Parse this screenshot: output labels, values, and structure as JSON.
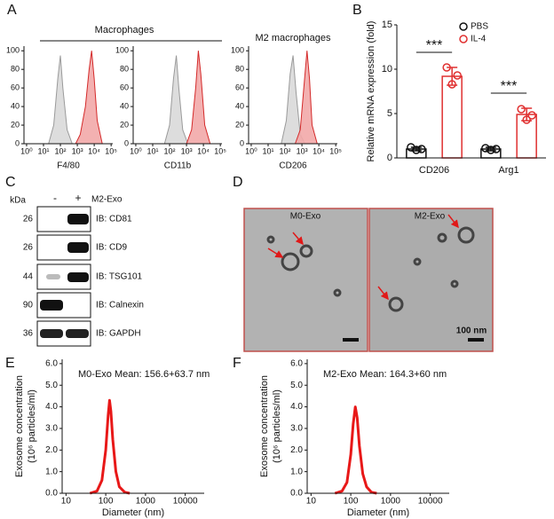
{
  "panel_labels": [
    "A",
    "B",
    "C",
    "D",
    "E",
    "F"
  ],
  "group_label": "Macrophages",
  "blot": {
    "kda_label": "kDa",
    "lanes": [
      "-",
      "+"
    ],
    "sample": "M2-Exo",
    "rows": [
      {
        "kda": 26,
        "label": "IB: CD81"
      },
      {
        "kda": 26,
        "label": "IB: CD9"
      },
      {
        "kda": 44,
        "label": "IB: TSG101"
      },
      {
        "kda": 90,
        "label": "IB: Calnexin"
      },
      {
        "kda": 36,
        "label": "IB: GAPDH"
      }
    ]
  },
  "tem": {
    "images": [
      "M0-Exo",
      "M2-Exo"
    ],
    "scale_bar": "100 nm"
  },
  "chart_data": [
    {
      "type": "area",
      "xlabel": "F4/80",
      "xscale": "log",
      "xlim": [
        0.7,
        125000
      ],
      "ylim": [
        0,
        105
      ],
      "xticks": [
        {
          "value": 1,
          "label": "10⁰"
        },
        {
          "value": 10,
          "label": "10¹"
        },
        {
          "value": 100,
          "label": "10²"
        },
        {
          "value": 1000,
          "label": "10³"
        },
        {
          "value": 10000,
          "label": "10⁴"
        },
        {
          "value": 100000,
          "label": "10⁵"
        }
      ],
      "yticks": [
        0,
        20,
        40,
        60,
        80,
        100
      ],
      "series": [
        {
          "color": "#9a9a9a",
          "fill": "#d9d9d9",
          "x": [
            20,
            40,
            70,
            100,
            140,
            250,
            500
          ],
          "values": [
            0,
            20,
            70,
            95,
            60,
            15,
            0
          ]
        },
        {
          "color": "#d42a2a",
          "fill": "#f2a9a9",
          "x": [
            800,
            1500,
            3000,
            5000,
            7000,
            10000,
            15000,
            30000
          ],
          "values": [
            0,
            10,
            40,
            80,
            100,
            70,
            25,
            0
          ]
        }
      ]
    },
    {
      "type": "area",
      "xlabel": "CD11b",
      "xscale": "log",
      "xlim": [
        0.7,
        125000
      ],
      "ylim": [
        0,
        105
      ],
      "xticks": [
        {
          "value": 1,
          "label": "10⁰"
        },
        {
          "value": 10,
          "label": "10¹"
        },
        {
          "value": 100,
          "label": "10²"
        },
        {
          "value": 1000,
          "label": "10³"
        },
        {
          "value": 10000,
          "label": "10⁴"
        },
        {
          "value": 100000,
          "label": "10⁵"
        }
      ],
      "yticks": [
        0,
        20,
        40,
        60,
        80,
        100
      ],
      "series": [
        {
          "color": "#9a9a9a",
          "fill": "#d9d9d9",
          "x": [
            50,
            100,
            170,
            250,
            350,
            600,
            1200
          ],
          "values": [
            0,
            20,
            70,
            95,
            60,
            15,
            0
          ]
        },
        {
          "color": "#d42a2a",
          "fill": "#f2a9a9",
          "x": [
            1000,
            2000,
            3500,
            5000,
            7000,
            12000,
            25000
          ],
          "values": [
            0,
            15,
            60,
            100,
            75,
            20,
            0
          ]
        }
      ]
    },
    {
      "type": "area",
      "title": "M2 macrophages",
      "xlabel": "CD206",
      "xscale": "log",
      "xlim": [
        0.7,
        125000
      ],
      "ylim": [
        0,
        105
      ],
      "xticks": [
        {
          "value": 1,
          "label": "10⁰"
        },
        {
          "value": 10,
          "label": "10¹"
        },
        {
          "value": 100,
          "label": "10²"
        },
        {
          "value": 1000,
          "label": "10³"
        },
        {
          "value": 10000,
          "label": "10⁴"
        },
        {
          "value": 100000,
          "label": "10⁵"
        }
      ],
      "yticks": [
        0,
        20,
        40,
        60,
        80,
        100
      ],
      "series": [
        {
          "color": "#9a9a9a",
          "fill": "#d9d9d9",
          "x": [
            60,
            120,
            200,
            300,
            450,
            800,
            1500
          ],
          "values": [
            0,
            25,
            75,
            95,
            55,
            10,
            0
          ]
        },
        {
          "color": "#d42a2a",
          "fill": "#f2a9a9",
          "x": [
            400,
            800,
            1300,
            2000,
            2800,
            4000,
            8000
          ],
          "values": [
            0,
            15,
            60,
            100,
            70,
            20,
            0
          ]
        }
      ]
    },
    {
      "type": "bar",
      "ylabel": "Relative mRNA expression (fold)",
      "categories": [
        "CD206",
        "Arg1"
      ],
      "ylim": [
        0,
        15
      ],
      "yticks": [
        0,
        5,
        10,
        15
      ],
      "annotations": [
        "***",
        "***"
      ],
      "legend": "top-right",
      "series": [
        {
          "name": "PBS",
          "color": "#111111",
          "values": [
            1.0,
            1.0
          ],
          "errors": [
            0.2,
            0.2
          ],
          "points": [
            [
              1.2,
              0.9,
              1.0
            ],
            [
              1.1,
              0.9,
              1.0
            ]
          ]
        },
        {
          "name": "IL-4",
          "color": "#e03030",
          "values": [
            9.2,
            4.9
          ],
          "errors": [
            1.0,
            0.7
          ],
          "points": [
            [
              10.2,
              8.3,
              9.3
            ],
            [
              5.5,
              4.3,
              4.8
            ]
          ]
        }
      ]
    },
    {
      "type": "line",
      "title": "M0-Exo Mean: 156.6+63.7 nm",
      "xlabel": "Diameter (nm)",
      "ylabel": [
        "Exosome concentration",
        "(10⁶ particles/ml)"
      ],
      "xscale": "log",
      "xlim": [
        8,
        30000
      ],
      "ylim": [
        0,
        6.2
      ],
      "color": "#e81818",
      "xticks": [
        10,
        100,
        1000,
        10000
      ],
      "yticks": [
        {
          "value": 0,
          "label": "0.0"
        },
        {
          "value": 1,
          "label": "1.0"
        },
        {
          "value": 2,
          "label": "2.0"
        },
        {
          "value": 3,
          "label": "3.0"
        },
        {
          "value": 4,
          "label": "4.0"
        },
        {
          "value": 5,
          "label": "5.0"
        },
        {
          "value": 6,
          "label": "6.0"
        }
      ],
      "x": [
        40,
        60,
        80,
        100,
        115,
        125,
        135,
        150,
        180,
        220,
        300,
        400
      ],
      "values": [
        0,
        0.1,
        0.6,
        2.0,
        3.6,
        4.3,
        3.8,
        2.5,
        1.0,
        0.3,
        0.05,
        0
      ]
    },
    {
      "type": "line",
      "title": "M2-Exo Mean: 164.3+60 nm",
      "xlabel": "Diameter (nm)",
      "ylabel": [
        "Exosome concentration",
        "(10⁶ particles/ml)"
      ],
      "xscale": "log",
      "xlim": [
        8,
        30000
      ],
      "ylim": [
        0,
        6.2
      ],
      "color": "#e81818",
      "xticks": [
        10,
        100,
        1000,
        10000
      ],
      "yticks": [
        {
          "value": 0,
          "label": "0.0"
        },
        {
          "value": 1,
          "label": "1.0"
        },
        {
          "value": 2,
          "label": "2.0"
        },
        {
          "value": 3,
          "label": "3.0"
        },
        {
          "value": 4,
          "label": "4.0"
        },
        {
          "value": 5,
          "label": "5.0"
        },
        {
          "value": 6,
          "label": "6.0"
        }
      ],
      "x": [
        40,
        60,
        80,
        100,
        115,
        130,
        145,
        165,
        200,
        250,
        330,
        450
      ],
      "values": [
        0,
        0.1,
        0.5,
        1.8,
        3.2,
        4.0,
        3.5,
        2.2,
        0.9,
        0.3,
        0.05,
        0
      ]
    }
  ]
}
